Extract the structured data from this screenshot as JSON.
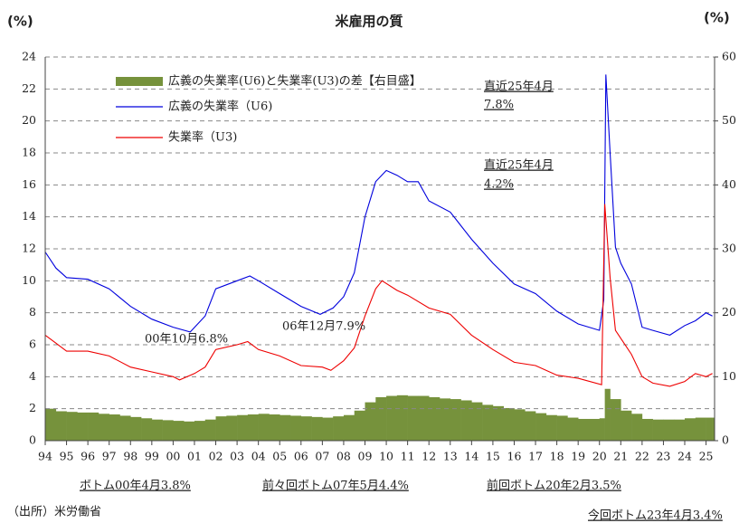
{
  "chart_data": {
    "type": "line",
    "title": "米雇用の質",
    "y_label": "(%)",
    "y2_label": "(%)",
    "source": "（出所）米労働省",
    "ylim": [
      0,
      24
    ],
    "yticks": [
      0,
      2,
      4,
      6,
      8,
      10,
      12,
      14,
      16,
      18,
      20,
      22,
      24
    ],
    "y2lim": [
      0,
      60
    ],
    "y2ticks": [
      0,
      10,
      20,
      30,
      40,
      50,
      60
    ],
    "xlim": [
      1994,
      2025.4
    ],
    "xticks": [
      {
        "value": 1994,
        "label": "94"
      },
      {
        "value": 1995,
        "label": "95"
      },
      {
        "value": 1996,
        "label": "96"
      },
      {
        "value": 1997,
        "label": "97"
      },
      {
        "value": 1998,
        "label": "98"
      },
      {
        "value": 1999,
        "label": "99"
      },
      {
        "value": 2000,
        "label": "00"
      },
      {
        "value": 2001,
        "label": "01"
      },
      {
        "value": 2002,
        "label": "02"
      },
      {
        "value": 2003,
        "label": "03"
      },
      {
        "value": 2004,
        "label": "04"
      },
      {
        "value": 2005,
        "label": "05"
      },
      {
        "value": 2006,
        "label": "06"
      },
      {
        "value": 2007,
        "label": "07"
      },
      {
        "value": 2008,
        "label": "08"
      },
      {
        "value": 2009,
        "label": "09"
      },
      {
        "value": 2010,
        "label": "10"
      },
      {
        "value": 2011,
        "label": "11"
      },
      {
        "value": 2012,
        "label": "12"
      },
      {
        "value": 2013,
        "label": "13"
      },
      {
        "value": 2014,
        "label": "14"
      },
      {
        "value": 2015,
        "label": "15"
      },
      {
        "value": 2016,
        "label": "16"
      },
      {
        "value": 2017,
        "label": "17"
      },
      {
        "value": 2018,
        "label": "18"
      },
      {
        "value": 2019,
        "label": "19"
      },
      {
        "value": 2020,
        "label": "20"
      },
      {
        "value": 2021,
        "label": "21"
      },
      {
        "value": 2022,
        "label": "22"
      },
      {
        "value": 2023,
        "label": "23"
      },
      {
        "value": 2024,
        "label": "24"
      },
      {
        "value": 2025,
        "label": "25"
      }
    ],
    "grid": true,
    "series": [
      {
        "name": "広義の失業率(U6)と失業率(U3)の差【右目盛】",
        "type": "bar",
        "axis": "y2",
        "color": "#76923c",
        "x": [
          1994,
          1994.5,
          1995,
          1995.5,
          1996,
          1996.5,
          1997,
          1997.5,
          1998,
          1998.5,
          1999,
          1999.5,
          2000,
          2000.5,
          2001,
          2001.5,
          2002,
          2002.5,
          2003,
          2003.5,
          2004,
          2004.5,
          2005,
          2005.5,
          2006,
          2006.5,
          2007,
          2007.5,
          2008,
          2008.5,
          2009,
          2009.5,
          2010,
          2010.5,
          2011,
          2011.5,
          2012,
          2012.5,
          2013,
          2013.5,
          2014,
          2014.5,
          2015,
          2015.5,
          2016,
          2016.5,
          2017,
          2017.5,
          2018,
          2018.5,
          2019,
          2019.5,
          2020,
          2020.25,
          2020.5,
          2021,
          2021.5,
          2022,
          2022.5,
          2023,
          2023.5,
          2024,
          2024.5,
          2025,
          2025.3
        ],
        "values": [
          5.0,
          4.6,
          4.5,
          4.4,
          4.4,
          4.2,
          4.1,
          3.9,
          3.7,
          3.5,
          3.3,
          3.2,
          3.1,
          3.0,
          3.1,
          3.3,
          3.8,
          3.9,
          4.0,
          4.1,
          4.2,
          4.1,
          4.0,
          3.9,
          3.8,
          3.7,
          3.6,
          3.8,
          4.0,
          4.7,
          6.0,
          6.8,
          7.0,
          7.1,
          7.0,
          7.0,
          6.8,
          6.6,
          6.5,
          6.3,
          6.0,
          5.6,
          5.4,
          5.1,
          4.9,
          4.6,
          4.3,
          4.0,
          3.9,
          3.6,
          3.4,
          3.4,
          3.5,
          8.1,
          6.5,
          4.7,
          4.2,
          3.4,
          3.3,
          3.3,
          3.3,
          3.5,
          3.6,
          3.6,
          3.6
        ]
      },
      {
        "name": "広義の失業率（U6)",
        "type": "line",
        "color": "#0000dd",
        "x": [
          1994,
          1994.5,
          1995,
          1996,
          1997,
          1998,
          1999,
          2000,
          2000.8,
          2001.5,
          2002,
          2003,
          2003.6,
          2004,
          2005,
          2006,
          2006.9,
          2007.5,
          2008,
          2008.5,
          2009,
          2009.5,
          2010,
          2010.5,
          2011,
          2011.5,
          2012,
          2013,
          2014,
          2015,
          2016,
          2017,
          2018,
          2019,
          2020,
          2020.2,
          2020.3,
          2020.5,
          2020.75,
          2021,
          2021.5,
          2022,
          2022.5,
          2023.3,
          2024,
          2024.5,
          2025,
          2025.3
        ],
        "values": [
          11.8,
          10.8,
          10.2,
          10.1,
          9.5,
          8.4,
          7.6,
          7.1,
          6.8,
          7.8,
          9.5,
          10.0,
          10.3,
          10.0,
          9.2,
          8.4,
          7.9,
          8.3,
          9.0,
          10.5,
          14.0,
          16.2,
          16.9,
          16.6,
          16.2,
          16.2,
          15.0,
          14.3,
          12.6,
          11.1,
          9.8,
          9.2,
          8.1,
          7.3,
          6.9,
          8.8,
          22.9,
          18.0,
          12.1,
          11.1,
          9.8,
          7.1,
          6.9,
          6.6,
          7.2,
          7.5,
          8.0,
          7.8
        ]
      },
      {
        "name": "失業率（U3)",
        "type": "line",
        "color": "#ee0000",
        "x": [
          1994,
          1994.5,
          1995,
          1996,
          1997,
          1998,
          1999,
          2000,
          2000.3,
          2001,
          2001.5,
          2002,
          2003,
          2003.5,
          2004,
          2005,
          2006,
          2007,
          2007.4,
          2008,
          2008.5,
          2009,
          2009.5,
          2009.8,
          2010.5,
          2011,
          2012,
          2013,
          2014,
          2015,
          2016,
          2017,
          2018,
          2019,
          2020.1,
          2020.25,
          2020.5,
          2020.75,
          2021,
          2021.5,
          2022,
          2022.5,
          2023.3,
          2024,
          2024.5,
          2025,
          2025.3
        ],
        "values": [
          6.6,
          6.1,
          5.6,
          5.6,
          5.3,
          4.6,
          4.3,
          4.0,
          3.8,
          4.2,
          4.6,
          5.7,
          6.0,
          6.2,
          5.7,
          5.3,
          4.7,
          4.6,
          4.4,
          5.0,
          5.8,
          7.8,
          9.5,
          10.0,
          9.4,
          9.1,
          8.3,
          7.9,
          6.6,
          5.7,
          4.9,
          4.7,
          4.1,
          3.9,
          3.5,
          14.8,
          10.2,
          6.9,
          6.4,
          5.4,
          4.0,
          3.6,
          3.4,
          3.7,
          4.2,
          4.0,
          4.2
        ]
      }
    ],
    "annotations": [
      {
        "text": "直近25年4月",
        "color": "#0000dd"
      },
      {
        "text": "7.8%",
        "color": "#0000dd"
      },
      {
        "text": "直近25年4月",
        "color": "#ee0000"
      },
      {
        "text": "4.2%",
        "color": "#ee0000"
      },
      {
        "text": "00年10月6.8%",
        "color": "#3333cc"
      },
      {
        "text": "06年12月7.9%",
        "color": "#3333cc"
      },
      {
        "text": "ボトム00年4月3.8%",
        "color": "#ee0000"
      },
      {
        "text": "前々回ボトム07年5月4.4%",
        "color": "#ee0000"
      },
      {
        "text": "前回ボトム20年2月3.5%",
        "color": "#ee0000"
      },
      {
        "text": "今回ボトム23年4月3.4%",
        "color": "#ee0000"
      }
    ]
  }
}
